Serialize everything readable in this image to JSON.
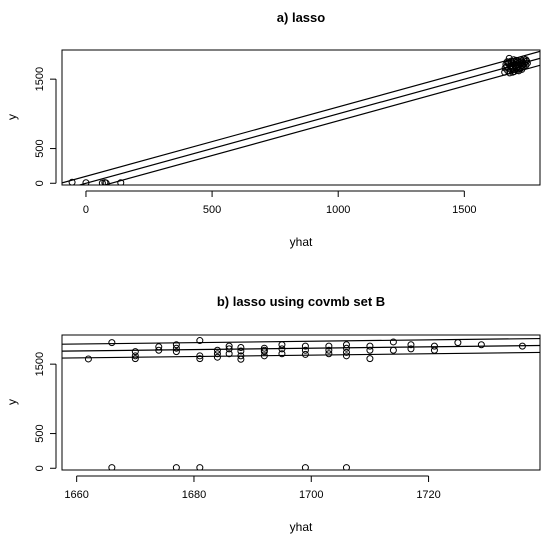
{
  "chart_data": [
    {
      "type": "scatter",
      "title": "a) lasso",
      "xlabel": "yhat",
      "ylabel": "y",
      "xlim": [
        -95,
        1800
      ],
      "ylim": [
        -25,
        1920
      ],
      "xticks": [
        0,
        500,
        1000,
        1500
      ],
      "yticks": [
        0,
        500,
        1500
      ],
      "xtick_labels": [
        "0",
        "500",
        "1000",
        "1500"
      ],
      "ytick_labels": [
        "0",
        "500",
        "1500"
      ],
      "grid": false,
      "legend": "none",
      "points": [
        [
          -55,
          14
        ],
        [
          0,
          8
        ],
        [
          65,
          2
        ],
        [
          75,
          10
        ],
        [
          80,
          3
        ],
        [
          138,
          8
        ],
        [
          1660,
          1600
        ],
        [
          1662,
          1660
        ],
        [
          1665,
          1710
        ],
        [
          1668,
          1680
        ],
        [
          1670,
          1750
        ],
        [
          1672,
          1620
        ],
        [
          1675,
          1720
        ],
        [
          1678,
          1800
        ],
        [
          1680,
          1590
        ],
        [
          1682,
          1690
        ],
        [
          1684,
          1640
        ],
        [
          1686,
          1760
        ],
        [
          1688,
          1700
        ],
        [
          1690,
          1650
        ],
        [
          1692,
          1730
        ],
        [
          1694,
          1670
        ],
        [
          1696,
          1780
        ],
        [
          1698,
          1610
        ],
        [
          1700,
          1720
        ],
        [
          1702,
          1690
        ],
        [
          1704,
          1740
        ],
        [
          1706,
          1660
        ],
        [
          1708,
          1700
        ],
        [
          1710,
          1630
        ],
        [
          1712,
          1760
        ],
        [
          1714,
          1710
        ],
        [
          1716,
          1680
        ],
        [
          1718,
          1740
        ],
        [
          1720,
          1720
        ],
        [
          1722,
          1650
        ],
        [
          1724,
          1780
        ],
        [
          1726,
          1690
        ],
        [
          1728,
          1760
        ],
        [
          1730,
          1700
        ],
        [
          1732,
          1740
        ],
        [
          1734,
          1680
        ],
        [
          1736,
          1790
        ],
        [
          1738,
          1720
        ],
        [
          1741,
          1750
        ],
        [
          1744,
          1700
        ],
        [
          1747,
          1760
        ],
        [
          1750,
          1730
        ],
        [
          1676,
          1740
        ],
        [
          1706,
          1770
        ],
        [
          1716,
          1620
        ],
        [
          1728,
          1640
        ],
        [
          1692,
          1600
        ],
        [
          1744,
          1780
        ]
      ],
      "lines": [
        {
          "intercept": 100,
          "slope": 1
        },
        {
          "intercept": 0,
          "slope": 1
        },
        {
          "intercept": -100,
          "slope": 1
        }
      ]
    },
    {
      "type": "scatter",
      "title": "b) lasso using covmb set B",
      "xlabel": "yhat",
      "ylabel": "y",
      "xlim": [
        1657.5,
        1739
      ],
      "ylim": [
        -25,
        1920
      ],
      "xticks": [
        1660,
        1680,
        1700,
        1720
      ],
      "yticks": [
        0,
        500,
        1500
      ],
      "xtick_labels": [
        "1660",
        "1680",
        "1700",
        "1720"
      ],
      "ytick_labels": [
        "0",
        "500",
        "1500"
      ],
      "grid": false,
      "legend": "none",
      "points": [
        [
          1662,
          1575
        ],
        [
          1666,
          1810
        ],
        [
          1666,
          10
        ],
        [
          1670,
          1680
        ],
        [
          1670,
          1620
        ],
        [
          1670,
          1580
        ],
        [
          1674,
          1700
        ],
        [
          1674,
          1750
        ],
        [
          1677,
          1680
        ],
        [
          1677,
          1730
        ],
        [
          1677,
          1780
        ],
        [
          1677,
          10
        ],
        [
          1681,
          1840
        ],
        [
          1681,
          1620
        ],
        [
          1681,
          1580
        ],
        [
          1681,
          10
        ],
        [
          1684,
          1700
        ],
        [
          1684,
          1650
        ],
        [
          1684,
          1600
        ],
        [
          1686,
          1760
        ],
        [
          1686,
          1720
        ],
        [
          1686,
          1650
        ],
        [
          1688,
          1740
        ],
        [
          1688,
          1690
        ],
        [
          1688,
          1620
        ],
        [
          1688,
          1570
        ],
        [
          1692,
          1730
        ],
        [
          1692,
          1700
        ],
        [
          1692,
          1680
        ],
        [
          1692,
          1620
        ],
        [
          1695,
          1780
        ],
        [
          1695,
          1720
        ],
        [
          1695,
          1650
        ],
        [
          1699,
          1760
        ],
        [
          1699,
          1700
        ],
        [
          1699,
          1640
        ],
        [
          1699,
          10
        ],
        [
          1703,
          1760
        ],
        [
          1703,
          1700
        ],
        [
          1703,
          1650
        ],
        [
          1706,
          1780
        ],
        [
          1706,
          1730
        ],
        [
          1706,
          1670
        ],
        [
          1706,
          1620
        ],
        [
          1706,
          10
        ],
        [
          1710,
          1760
        ],
        [
          1710,
          1700
        ],
        [
          1710,
          1580
        ],
        [
          1714,
          1820
        ],
        [
          1714,
          1700
        ],
        [
          1717,
          1780
        ],
        [
          1717,
          1720
        ],
        [
          1721,
          1760
        ],
        [
          1721,
          1700
        ],
        [
          1725,
          1810
        ],
        [
          1729,
          1780
        ],
        [
          1736,
          1760
        ]
      ],
      "lines": [
        {
          "intercept": -70,
          "slope": 1
        },
        {
          "intercept": 30,
          "slope": 1
        },
        {
          "intercept": 130,
          "slope": 1
        }
      ]
    }
  ]
}
